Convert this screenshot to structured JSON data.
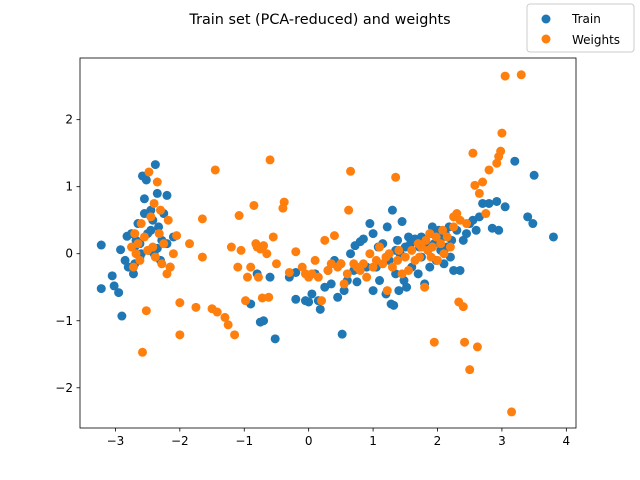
{
  "chart_data": {
    "type": "scatter",
    "title": "Train set (PCA-reduced) and weights",
    "xlabel": "",
    "ylabel": "",
    "xlim": [
      -3.55,
      4.15
    ],
    "ylim": [
      -2.6,
      2.92
    ],
    "xticks": [
      -3,
      -2,
      -1,
      0,
      1,
      2,
      3,
      4
    ],
    "yticks": [
      -2,
      -1,
      0,
      1,
      2
    ],
    "legend_position": "top-right",
    "series": [
      {
        "name": "Train",
        "color": "#1f77b4",
        "points": [
          [
            -3.22,
            0.13
          ],
          [
            -3.22,
            -0.52
          ],
          [
            -3.05,
            -0.33
          ],
          [
            -3.02,
            -0.48
          ],
          [
            -2.95,
            -0.58
          ],
          [
            -2.92,
            0.06
          ],
          [
            -2.9,
            -0.93
          ],
          [
            -2.85,
            -0.1
          ],
          [
            -2.82,
            0.26
          ],
          [
            -2.8,
            -0.2
          ],
          [
            -2.75,
            0.3
          ],
          [
            -2.72,
            -0.3
          ],
          [
            -2.7,
            0.1
          ],
          [
            -2.68,
            0.2
          ],
          [
            -2.65,
            0.45
          ],
          [
            -2.62,
            -0.05
          ],
          [
            -2.6,
            0.0
          ],
          [
            -2.58,
            1.16
          ],
          [
            -2.55,
            0.82
          ],
          [
            -2.55,
            0.6
          ],
          [
            -2.52,
            1.1
          ],
          [
            -2.5,
            0.3
          ],
          [
            -2.48,
            0.05
          ],
          [
            -2.45,
            0.65
          ],
          [
            -2.42,
            0.5
          ],
          [
            -2.4,
            0.0
          ],
          [
            -2.38,
            1.33
          ],
          [
            -2.35,
            0.9
          ],
          [
            -2.33,
            0.4
          ],
          [
            -2.3,
            -0.1
          ],
          [
            -2.28,
            0.2
          ],
          [
            -2.25,
            0.6
          ],
          [
            -2.2,
            0.15
          ],
          [
            -2.2,
            0.87
          ],
          [
            -2.15,
            -0.2
          ],
          [
            -2.1,
            0.25
          ],
          [
            -2.62,
            0.15
          ],
          [
            -2.45,
            0.35
          ],
          [
            -2.7,
            -0.15
          ],
          [
            -2.35,
            0.08
          ],
          [
            -0.9,
            -0.75
          ],
          [
            -0.8,
            -0.3
          ],
          [
            -0.75,
            -1.02
          ],
          [
            -0.7,
            -1.0
          ],
          [
            -0.6,
            -0.35
          ],
          [
            -0.52,
            -1.27
          ],
          [
            -0.3,
            -0.35
          ],
          [
            -0.2,
            -0.28
          ],
          [
            -0.2,
            -0.68
          ],
          [
            -0.05,
            -0.7
          ],
          [
            0.0,
            -0.72
          ],
          [
            0.05,
            -0.6
          ],
          [
            0.1,
            -0.3
          ],
          [
            0.15,
            -0.7
          ],
          [
            0.18,
            -0.83
          ],
          [
            0.25,
            -0.5
          ],
          [
            0.3,
            -0.25
          ],
          [
            0.35,
            -0.45
          ],
          [
            0.4,
            -0.1
          ],
          [
            0.45,
            -0.65
          ],
          [
            0.5,
            -0.15
          ],
          [
            0.52,
            -1.2
          ],
          [
            0.55,
            -0.55
          ],
          [
            0.6,
            -0.4
          ],
          [
            0.65,
            0.0
          ],
          [
            0.7,
            -0.25
          ],
          [
            0.72,
            0.12
          ],
          [
            0.75,
            -0.42
          ],
          [
            0.8,
            0.18
          ],
          [
            0.85,
            0.22
          ],
          [
            0.9,
            -0.2
          ],
          [
            0.95,
            0.45
          ],
          [
            1.0,
            -0.55
          ],
          [
            1.0,
            0.3
          ],
          [
            1.05,
            -0.2
          ],
          [
            1.08,
            0.1
          ],
          [
            1.1,
            -0.4
          ],
          [
            1.15,
            0.15
          ],
          [
            1.2,
            -0.6
          ],
          [
            1.22,
            0.4
          ],
          [
            1.25,
            -0.1
          ],
          [
            1.28,
            -0.75
          ],
          [
            1.3,
            0.65
          ],
          [
            1.32,
            -0.77
          ],
          [
            1.35,
            -0.3
          ],
          [
            1.38,
            0.2
          ],
          [
            1.4,
            -0.55
          ],
          [
            1.42,
            0.0
          ],
          [
            1.45,
            0.48
          ],
          [
            1.48,
            -0.4
          ],
          [
            1.5,
            0.1
          ],
          [
            1.52,
            -0.5
          ],
          [
            1.55,
            0.25
          ],
          [
            1.58,
            0.15
          ],
          [
            1.6,
            -0.2
          ],
          [
            1.65,
            0.22
          ],
          [
            1.7,
            -0.3
          ],
          [
            1.72,
            0.1
          ],
          [
            1.75,
            0.25
          ],
          [
            1.8,
            -0.45
          ],
          [
            1.82,
            0.15
          ],
          [
            1.85,
            0.05
          ],
          [
            1.88,
            -0.2
          ],
          [
            1.9,
            0.3
          ],
          [
            1.92,
            0.4
          ],
          [
            1.95,
            0.15
          ],
          [
            1.98,
            -0.1
          ],
          [
            2.0,
            0.2
          ],
          [
            2.02,
            0.35
          ],
          [
            2.05,
            0.05
          ],
          [
            2.08,
            0.25
          ],
          [
            2.1,
            -0.15
          ],
          [
            2.12,
            0.3
          ],
          [
            2.15,
            0.1
          ],
          [
            2.18,
            0.4
          ],
          [
            2.2,
            -0.05
          ],
          [
            2.22,
            0.2
          ],
          [
            2.25,
            -0.25
          ],
          [
            2.3,
            0.35
          ],
          [
            2.35,
            -0.25
          ],
          [
            2.4,
            0.2
          ],
          [
            2.45,
            0.3
          ],
          [
            2.5,
            0.45
          ],
          [
            2.55,
            0.5
          ],
          [
            2.6,
            0.35
          ],
          [
            2.65,
            0.55
          ],
          [
            2.7,
            0.75
          ],
          [
            2.8,
            0.75
          ],
          [
            2.85,
            0.38
          ],
          [
            2.92,
            0.78
          ],
          [
            2.95,
            0.35
          ],
          [
            3.05,
            0.7
          ],
          [
            3.2,
            1.38
          ],
          [
            3.4,
            0.55
          ],
          [
            3.48,
            0.45
          ],
          [
            3.5,
            1.17
          ],
          [
            3.8,
            0.25
          ],
          [
            1.35,
            0.05
          ],
          [
            1.75,
            -0.05
          ],
          [
            2.1,
            0.05
          ]
        ]
      },
      {
        "name": "Weights",
        "color": "#ff7f0e",
        "points": [
          [
            -2.75,
            0.1
          ],
          [
            -2.72,
            -0.2
          ],
          [
            -2.7,
            0.3
          ],
          [
            -2.68,
            0.0
          ],
          [
            -2.65,
            0.15
          ],
          [
            -2.62,
            -0.1
          ],
          [
            -2.6,
            0.45
          ],
          [
            -2.58,
            -1.47
          ],
          [
            -2.55,
            0.25
          ],
          [
            -2.52,
            -0.85
          ],
          [
            -2.5,
            0.05
          ],
          [
            -2.48,
            1.22
          ],
          [
            -2.45,
            0.55
          ],
          [
            -2.42,
            0.1
          ],
          [
            -2.4,
            0.75
          ],
          [
            -2.38,
            -0.05
          ],
          [
            -2.35,
            1.07
          ],
          [
            -2.32,
            0.3
          ],
          [
            -2.3,
            0.65
          ],
          [
            -2.28,
            -0.15
          ],
          [
            -2.25,
            0.15
          ],
          [
            -2.2,
            -0.3
          ],
          [
            -2.18,
            0.5
          ],
          [
            -2.15,
            -0.2
          ],
          [
            -2.1,
            0.0
          ],
          [
            -2.05,
            0.27
          ],
          [
            -2.0,
            -1.21
          ],
          [
            -2.0,
            -0.73
          ],
          [
            -1.85,
            0.15
          ],
          [
            -1.75,
            -0.8
          ],
          [
            -1.65,
            -0.05
          ],
          [
            -1.65,
            0.52
          ],
          [
            -1.5,
            -0.82
          ],
          [
            -1.45,
            1.25
          ],
          [
            -1.42,
            -0.87
          ],
          [
            -1.3,
            -0.95
          ],
          [
            -1.25,
            -1.06
          ],
          [
            -1.2,
            0.1
          ],
          [
            -1.15,
            -1.21
          ],
          [
            -1.1,
            -0.2
          ],
          [
            -1.08,
            0.57
          ],
          [
            -1.05,
            0.05
          ],
          [
            -0.98,
            -0.7
          ],
          [
            -0.95,
            -0.35
          ],
          [
            -0.9,
            -0.2
          ],
          [
            -0.85,
            0.72
          ],
          [
            -0.82,
            0.15
          ],
          [
            -0.8,
            0.1
          ],
          [
            -0.78,
            -0.35
          ],
          [
            -0.75,
            0.07
          ],
          [
            -0.72,
            -0.66
          ],
          [
            -0.7,
            0.12
          ],
          [
            -0.65,
            0.0
          ],
          [
            -0.62,
            -0.65
          ],
          [
            -0.6,
            1.4
          ],
          [
            -0.55,
            0.25
          ],
          [
            -0.5,
            -0.15
          ],
          [
            -0.4,
            0.68
          ],
          [
            -0.38,
            0.77
          ],
          [
            -0.3,
            -0.28
          ],
          [
            -0.2,
            0.03
          ],
          [
            -0.1,
            -0.2
          ],
          [
            -0.05,
            -0.3
          ],
          [
            0.0,
            -0.35
          ],
          [
            0.05,
            -0.3
          ],
          [
            0.1,
            -0.1
          ],
          [
            0.15,
            -0.35
          ],
          [
            0.2,
            -0.7
          ],
          [
            0.25,
            0.2
          ],
          [
            0.3,
            -0.25
          ],
          [
            0.35,
            -0.15
          ],
          [
            0.4,
            0.27
          ],
          [
            0.45,
            -0.2
          ],
          [
            0.5,
            -0.15
          ],
          [
            0.55,
            -0.45
          ],
          [
            0.6,
            -0.3
          ],
          [
            0.62,
            0.65
          ],
          [
            0.65,
            1.23
          ],
          [
            0.7,
            -0.15
          ],
          [
            0.75,
            -0.2
          ],
          [
            0.8,
            -0.25
          ],
          [
            0.85,
            -0.15
          ],
          [
            0.9,
            -0.35
          ],
          [
            0.95,
            0.0
          ],
          [
            1.0,
            -0.2
          ],
          [
            1.05,
            -0.1
          ],
          [
            1.1,
            0.1
          ],
          [
            1.15,
            -0.15
          ],
          [
            1.2,
            -0.05
          ],
          [
            1.22,
            -0.55
          ],
          [
            1.25,
            0.0
          ],
          [
            1.3,
            -0.2
          ],
          [
            1.35,
            1.14
          ],
          [
            1.38,
            -0.1
          ],
          [
            1.4,
            0.05
          ],
          [
            1.45,
            -0.3
          ],
          [
            1.5,
            -0.05
          ],
          [
            1.55,
            -0.25
          ],
          [
            1.6,
            0.05
          ],
          [
            1.65,
            -0.1
          ],
          [
            1.7,
            0.15
          ],
          [
            1.72,
            -0.05
          ],
          [
            1.75,
            0.1
          ],
          [
            1.8,
            -0.5
          ],
          [
            1.82,
            0.2
          ],
          [
            1.85,
            0.05
          ],
          [
            1.88,
            0.3
          ],
          [
            1.9,
            -0.05
          ],
          [
            1.92,
            0.1
          ],
          [
            1.95,
            -1.32
          ],
          [
            1.98,
            0.25
          ],
          [
            2.0,
            -0.1
          ],
          [
            2.05,
            0.15
          ],
          [
            2.08,
            0.35
          ],
          [
            2.1,
            0.0
          ],
          [
            2.15,
            0.25
          ],
          [
            2.2,
            0.1
          ],
          [
            2.25,
            0.4
          ],
          [
            2.3,
            0.6
          ],
          [
            2.33,
            -0.72
          ],
          [
            2.35,
            0.5
          ],
          [
            2.4,
            -0.79
          ],
          [
            2.42,
            -1.32
          ],
          [
            2.45,
            0.45
          ],
          [
            2.5,
            -1.73
          ],
          [
            2.55,
            1.5
          ],
          [
            2.58,
            1.02
          ],
          [
            2.62,
            -1.39
          ],
          [
            2.65,
            0.9
          ],
          [
            2.7,
            1.07
          ],
          [
            2.75,
            0.6
          ],
          [
            2.8,
            1.25
          ],
          [
            2.92,
            1.35
          ],
          [
            2.95,
            1.45
          ],
          [
            2.98,
            1.53
          ],
          [
            3.0,
            1.8
          ],
          [
            3.05,
            2.65
          ],
          [
            3.15,
            -2.36
          ],
          [
            3.3,
            2.67
          ],
          [
            2.25,
            0.55
          ]
        ]
      }
    ]
  }
}
